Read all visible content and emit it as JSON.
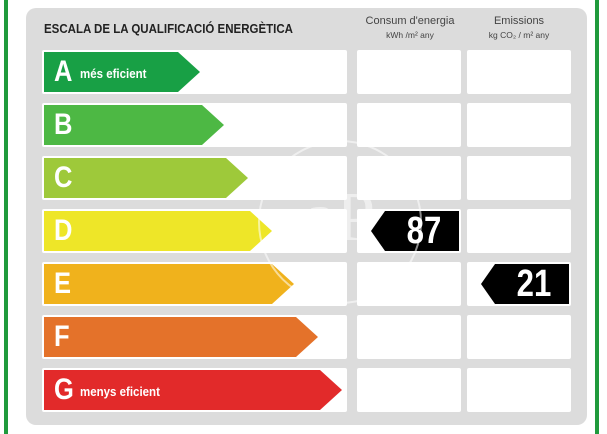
{
  "header": {
    "title": "ESCALA DE LA QUALIFICACIÓ ENERGÈTICA",
    "consumption_title": "Consum d'energia",
    "consumption_unit": "kWh /m² any",
    "emissions_title": "Emissions",
    "emissions_unit": "kg CO₂ / m² any"
  },
  "colors": {
    "A": "#18a045",
    "B": "#4db844",
    "C": "#9ec93a",
    "D": "#eee628",
    "E": "#f0b21c",
    "F": "#e4722a",
    "G": "#e22a2a",
    "frame": "#1f9a3c",
    "indicator": "#000000"
  },
  "rows": [
    {
      "letter": "A",
      "caption": "més eficient"
    },
    {
      "letter": "B",
      "caption": ""
    },
    {
      "letter": "C",
      "caption": ""
    },
    {
      "letter": "D",
      "caption": ""
    },
    {
      "letter": "E",
      "caption": ""
    },
    {
      "letter": "F",
      "caption": ""
    },
    {
      "letter": "G",
      "caption": "menys eficient"
    }
  ],
  "rating": {
    "consumption_value": "87",
    "consumption_class": "D",
    "emissions_value": "21",
    "emissions_class": "E"
  },
  "watermark_text": "aP"
}
